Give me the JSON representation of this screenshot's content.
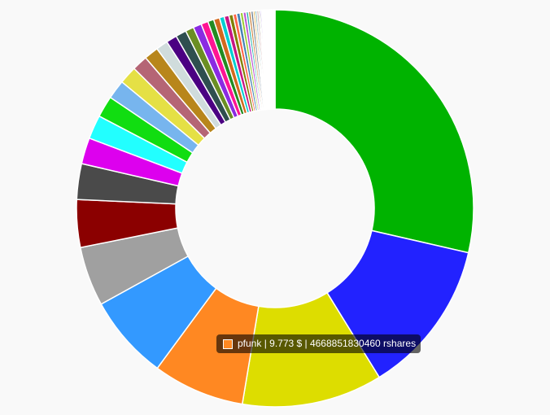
{
  "chart_data": {
    "type": "doughnut",
    "title": "",
    "legend": "none",
    "series": [
      {
        "values": [
          29.5,
          13.0,
          11.8,
          7.7,
          7.1,
          5.0,
          4.0,
          3.0,
          2.2,
          2.0,
          1.8,
          1.6,
          1.5,
          1.3,
          1.2,
          1.0,
          0.9,
          0.9,
          0.7,
          0.7,
          0.6,
          0.5,
          0.5,
          0.4,
          0.4,
          0.35,
          0.3,
          0.3,
          0.25,
          0.25,
          0.2,
          0.2,
          0.2,
          0.15,
          0.15,
          0.15,
          0.12,
          0.12,
          0.1,
          0.1,
          0.1,
          0.1,
          0.08,
          0.08,
          0.08,
          0.06,
          0.06,
          0.05,
          0.05,
          0.05,
          0.04,
          0.04,
          0.03,
          0.03,
          0.03,
          0.02,
          0.02
        ],
        "colors": [
          "#00b300",
          "#2222ff",
          "#dddd00",
          "#ff8822",
          "#3399ff",
          "#a0a0a0",
          "#8b0000",
          "#4a4a4a",
          "#dd00ee",
          "#22ffff",
          "#11dd11",
          "#77b5ee",
          "#e5e045",
          "#b56575",
          "#b8861b",
          "#d0dcdc",
          "#4b0082",
          "#2f4f4f",
          "#6b8e23",
          "#8a2be2",
          "#ff1493",
          "#228b22",
          "#d2691e",
          "#00ced1",
          "#c71585",
          "#808000",
          "#ff6347",
          "#4682b4",
          "#9acd32",
          "#ba55d3",
          "#20b2aa",
          "#cd853f",
          "#708090",
          "#daa520",
          "#5f9ea0",
          "#bc8f8f",
          "#556b2f",
          "#9370db",
          "#3cb371",
          "#f08080",
          "#6495ed",
          "#b0c4de",
          "#8fbc8f",
          "#e9967a",
          "#66cdaa",
          "#ffb6c1",
          "#87ceeb",
          "#dda0dd",
          "#98fb98",
          "#f4a460",
          "#add8e6",
          "#ffa07a",
          "#90ee90",
          "#d8bfd8",
          "#b0e0e6",
          "#eee8aa",
          "#afeeee"
        ]
      }
    ]
  },
  "tooltip": {
    "text": "pfunk | 9.773 $ | 4668851830460 rshares",
    "color": "#ff8822"
  }
}
